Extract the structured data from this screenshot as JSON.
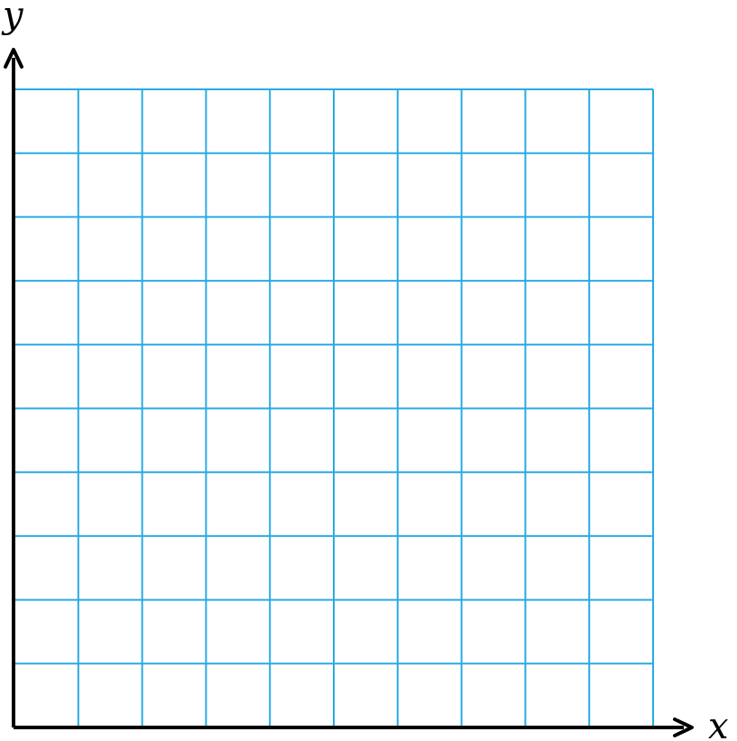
{
  "axes": {
    "x_label": "x",
    "y_label": "y"
  },
  "grid": {
    "columns": 10,
    "rows": 10
  },
  "colors": {
    "grid_line": "#29abe2",
    "axis": "#000000",
    "background": "#ffffff"
  }
}
